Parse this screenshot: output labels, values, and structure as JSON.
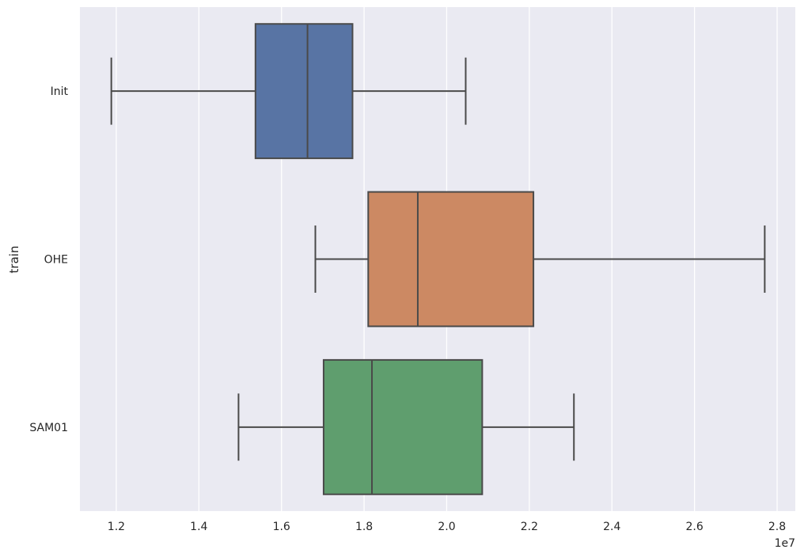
{
  "chart_data": {
    "type": "boxplot",
    "orientation": "horizontal",
    "title": "",
    "xlabel": "",
    "ylabel": "train",
    "x_offset_label": "1e7",
    "x_scale": 10000000,
    "xlim": [
      1.112,
      2.844
    ],
    "x_ticks": [
      1.2,
      1.4,
      1.6,
      1.8,
      2.0,
      2.2,
      2.4,
      2.6,
      2.8
    ],
    "x_tick_labels": [
      "1.2",
      "1.4",
      "1.6",
      "1.8",
      "2.0",
      "2.2",
      "2.4",
      "2.6",
      "2.8"
    ],
    "grid": true,
    "legend": "none",
    "background": "#eaeaf2",
    "categories": [
      "Init",
      "OHE",
      "SAM01"
    ],
    "boxes": [
      {
        "category": "Init",
        "whisker_low": 1.188,
        "q1": 1.537,
        "median": 1.663,
        "q3": 1.772,
        "whisker_high": 2.046,
        "color": "#5874a4"
      },
      {
        "category": "OHE",
        "whisker_low": 1.682,
        "q1": 1.81,
        "median": 1.93,
        "q3": 2.21,
        "whisker_high": 2.77,
        "color": "#cc8963"
      },
      {
        "category": "SAM01",
        "whisker_low": 1.496,
        "q1": 1.702,
        "median": 1.819,
        "q3": 2.086,
        "whisker_high": 2.308,
        "color": "#5f9e6e"
      }
    ]
  }
}
